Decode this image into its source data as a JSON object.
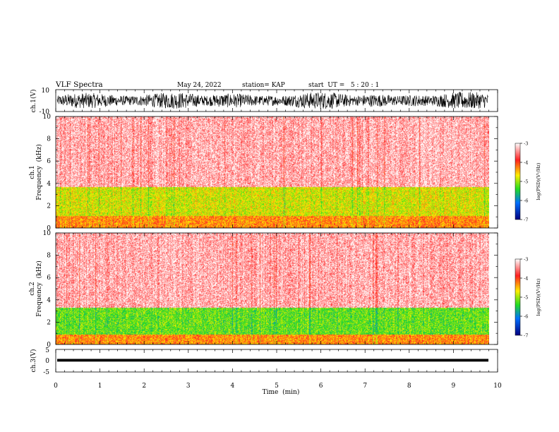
{
  "header": {
    "title": "VLF Spectra",
    "date": "May 24, 2022",
    "station": "station= KAP",
    "start": "start  UT =   5 : 20 : 1"
  },
  "colors": {
    "spectrum_low": "#ff2020",
    "spectrum_mid": "#ffee00",
    "spectrum_high": "#22dd22",
    "waveform": "#000000"
  },
  "chart_data": [
    {
      "type": "line",
      "name": "waveform-ch1",
      "ylabel": "ch.1(V)",
      "ylim": [
        -10,
        10
      ],
      "yticks": [
        "10",
        "-10"
      ],
      "xlim": [
        0,
        10
      ],
      "description_values": {
        "amplitude_range": [
          -8,
          8
        ]
      }
    },
    {
      "type": "heatmap",
      "name": "spectrogram-ch1",
      "ylabel": "ch.1\nFrequency (kHz)",
      "ylabel_line1": "ch.1",
      "ylabel_line2": "Frequency  (kHz)",
      "ylim": [
        0,
        10
      ],
      "yticks": [
        "0",
        "2",
        "4",
        "6",
        "8",
        "10"
      ],
      "xlim": [
        0,
        9.8
      ],
      "bands": [
        {
          "from_khz": 0.0,
          "to_khz": 1.1,
          "level": -4.3
        },
        {
          "from_khz": 1.1,
          "to_khz": 3.7,
          "level": -4.8
        },
        {
          "from_khz": 3.7,
          "to_khz": 10.0,
          "level": -3.3
        }
      ],
      "colorbar": {
        "label": "log(PSD)(V²/Hz)",
        "range": [
          -7,
          -3
        ],
        "ticks": [
          "-3",
          "-4",
          "-5",
          "-6",
          "-7"
        ]
      }
    },
    {
      "type": "heatmap",
      "name": "spectrogram-ch2",
      "ylabel_line1": "ch.2",
      "ylabel_line2": "Frequency  (kHz)",
      "ylim": [
        0,
        10
      ],
      "yticks": [
        "0",
        "2",
        "4",
        "6",
        "8",
        "10"
      ],
      "xlim": [
        0,
        9.8
      ],
      "bands": [
        {
          "from_khz": 0.0,
          "to_khz": 0.9,
          "level": -4.3
        },
        {
          "from_khz": 0.9,
          "to_khz": 3.3,
          "level": -5.2
        },
        {
          "from_khz": 3.3,
          "to_khz": 10.0,
          "level": -3.3
        }
      ],
      "colorbar": {
        "label": "log(PSD)(V²/Hz)",
        "range": [
          -7,
          -3
        ],
        "ticks": [
          "-3",
          "-4",
          "-5",
          "-6",
          "-7"
        ]
      }
    },
    {
      "type": "line",
      "name": "waveform-ch3",
      "ylabel": "ch.3(V)",
      "ylim": [
        -5,
        5
      ],
      "yticks": [
        "5",
        "0",
        "-5"
      ],
      "xlim": [
        0,
        10
      ],
      "description_values": {
        "amplitude_range": [
          -0.6,
          0.6
        ],
        "offset": 0.2
      }
    }
  ],
  "xaxis": {
    "label": "Time  (min)",
    "ticks": [
      "0",
      "1",
      "2",
      "3",
      "4",
      "5",
      "6",
      "7",
      "8",
      "9",
      "10"
    ]
  }
}
